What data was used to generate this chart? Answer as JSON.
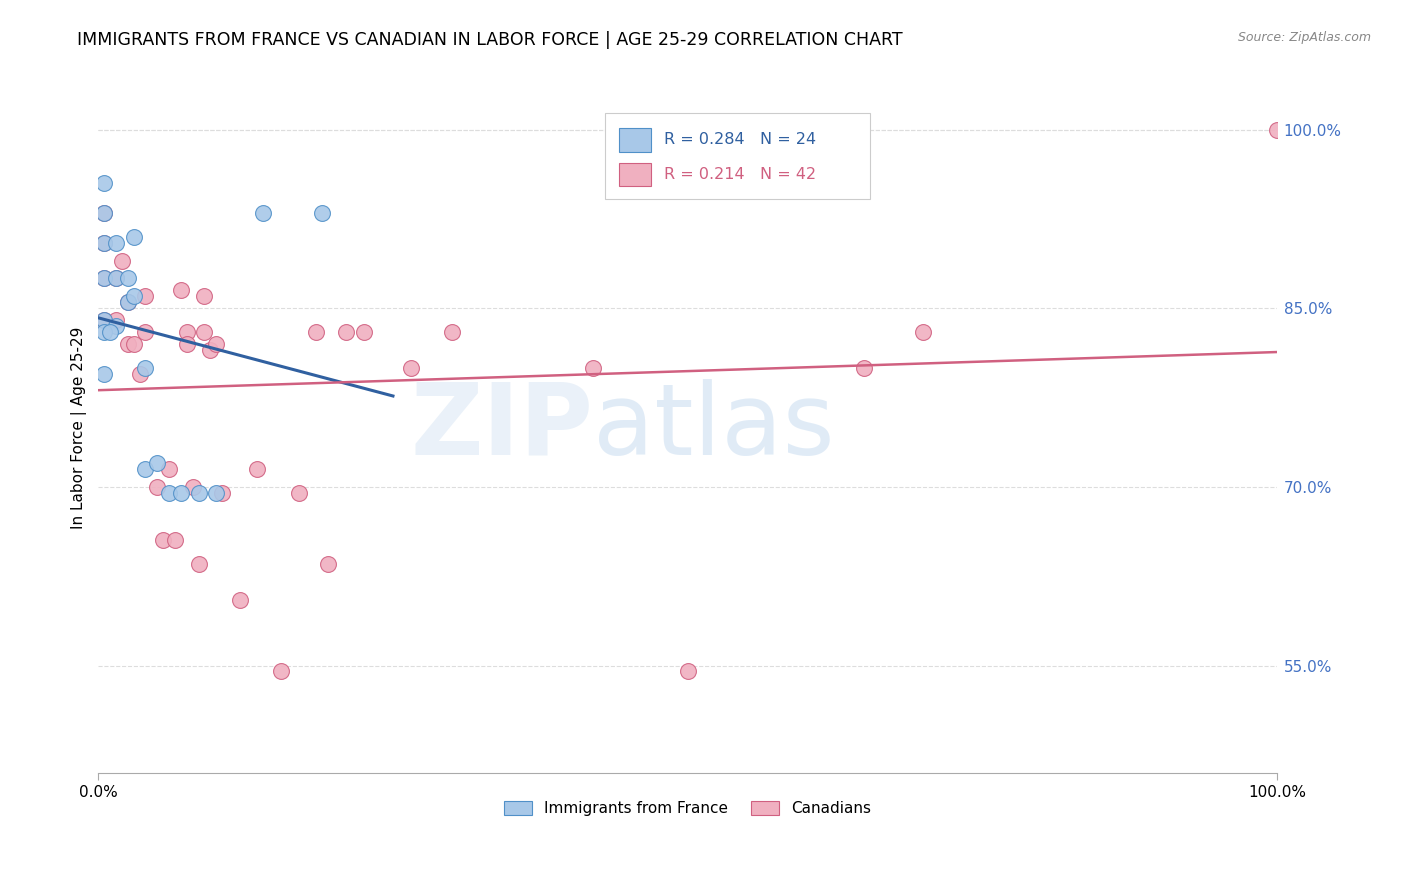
{
  "title": "IMMIGRANTS FROM FRANCE VS CANADIAN IN LABOR FORCE | AGE 25-29 CORRELATION CHART",
  "source": "Source: ZipAtlas.com",
  "ylabel": "In Labor Force | Age 25-29",
  "xlim": [
    0.0,
    1.0
  ],
  "ylim": [
    0.46,
    1.04
  ],
  "yticks": [
    0.55,
    0.7,
    0.85,
    1.0
  ],
  "ytick_labels": [
    "55.0%",
    "70.0%",
    "85.0%",
    "100.0%"
  ],
  "xticks": [
    0.0,
    1.0
  ],
  "xtick_labels": [
    "0.0%",
    "100.0%"
  ],
  "blue_R": "0.284",
  "blue_N": "24",
  "pink_R": "0.214",
  "pink_N": "42",
  "blue_scatter_color": "#a8c8e8",
  "blue_edge_color": "#5090c8",
  "pink_scatter_color": "#f0b0c0",
  "pink_edge_color": "#d06080",
  "blue_line_color": "#3060a0",
  "pink_line_color": "#d06080",
  "blue_x": [
    0.005,
    0.005,
    0.005,
    0.005,
    0.005,
    0.015,
    0.015,
    0.015,
    0.025,
    0.025,
    0.03,
    0.03,
    0.04,
    0.04,
    0.05,
    0.06,
    0.07,
    0.085,
    0.1,
    0.14,
    0.19,
    0.005,
    0.005,
    0.01
  ],
  "blue_y": [
    0.955,
    0.93,
    0.905,
    0.875,
    0.84,
    0.905,
    0.875,
    0.835,
    0.875,
    0.855,
    0.91,
    0.86,
    0.8,
    0.715,
    0.72,
    0.695,
    0.695,
    0.695,
    0.695,
    0.93,
    0.93,
    0.83,
    0.795,
    0.83
  ],
  "pink_x": [
    0.005,
    0.005,
    0.005,
    0.005,
    0.015,
    0.015,
    0.02,
    0.025,
    0.025,
    0.03,
    0.035,
    0.04,
    0.04,
    0.05,
    0.055,
    0.06,
    0.065,
    0.07,
    0.075,
    0.075,
    0.08,
    0.085,
    0.09,
    0.09,
    0.095,
    0.1,
    0.105,
    0.12,
    0.135,
    0.155,
    0.17,
    0.185,
    0.195,
    0.21,
    0.225,
    0.265,
    0.3,
    0.42,
    0.5,
    0.65,
    0.7,
    1.0
  ],
  "pink_y": [
    0.93,
    0.905,
    0.875,
    0.84,
    0.875,
    0.84,
    0.89,
    0.855,
    0.82,
    0.82,
    0.795,
    0.86,
    0.83,
    0.7,
    0.655,
    0.715,
    0.655,
    0.865,
    0.83,
    0.82,
    0.7,
    0.635,
    0.86,
    0.83,
    0.815,
    0.82,
    0.695,
    0.605,
    0.715,
    0.545,
    0.695,
    0.83,
    0.635,
    0.83,
    0.83,
    0.8,
    0.83,
    0.8,
    0.545,
    0.8,
    0.83,
    1.0
  ],
  "blue_line_x0": 0.0,
  "blue_line_x1": 0.25,
  "pink_line_x0": 0.0,
  "pink_line_x1": 1.0,
  "watermark_zip": "ZIP",
  "watermark_atlas": "atlas",
  "background_color": "#ffffff",
  "grid_color": "#dddddd",
  "legend_label_blue": "Immigrants from France",
  "legend_label_pink": "Canadians"
}
